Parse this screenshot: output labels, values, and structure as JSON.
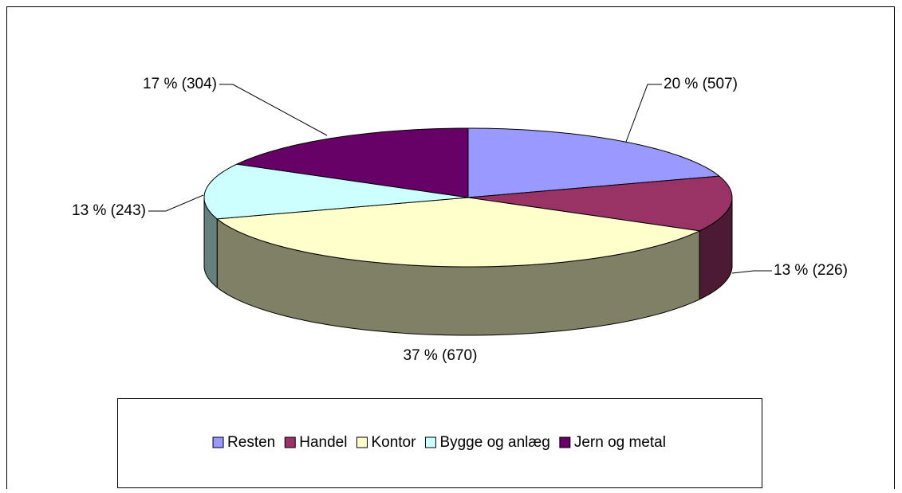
{
  "chart_data": {
    "type": "pie3d",
    "categories": [
      "Resten",
      "Handel",
      "Kontor",
      "Bygge og anlæg",
      "Jern og metal"
    ],
    "values": [
      20,
      13,
      37,
      13,
      17
    ],
    "value_labels": [
      "20 % (507)",
      "13 % (226)",
      "37 % (670)",
      "13 % (243)",
      "17 % (304)"
    ],
    "colors": [
      "#9999ff",
      "#993366",
      "#ffffcc",
      "#ccffff",
      "#660066"
    ],
    "legend": "bottom"
  }
}
